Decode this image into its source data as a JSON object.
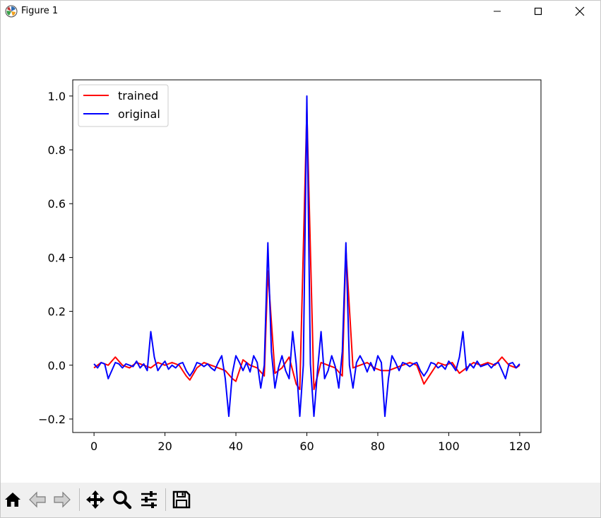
{
  "window": {
    "title": "Figure 1",
    "icons": {
      "app": "matplotlib-logo-icon",
      "minimize": "minimize-icon",
      "maximize": "maximize-icon",
      "close": "close-icon"
    }
  },
  "toolbar": {
    "buttons": [
      {
        "name": "home",
        "icon": "home-icon"
      },
      {
        "name": "back",
        "icon": "back-arrow-icon"
      },
      {
        "name": "forward",
        "icon": "forward-arrow-icon"
      },
      {
        "name": "pan",
        "icon": "move-icon"
      },
      {
        "name": "zoom",
        "icon": "zoom-icon"
      },
      {
        "name": "configure-subplots",
        "icon": "sliders-icon"
      },
      {
        "name": "save",
        "icon": "floppy-disk-icon"
      }
    ]
  },
  "chart_data": {
    "type": "line",
    "title": "",
    "xlabel": "",
    "ylabel": "",
    "xlim": [
      -6,
      126
    ],
    "ylim": [
      -0.25,
      1.06
    ],
    "xticks": [
      0,
      20,
      40,
      60,
      80,
      100,
      120
    ],
    "xtick_labels": [
      "0",
      "20",
      "40",
      "60",
      "80",
      "100",
      "120"
    ],
    "yticks": [
      -0.2,
      0.0,
      0.2,
      0.4,
      0.6,
      0.8,
      1.0
    ],
    "ytick_labels": [
      "−0.2",
      "0.0",
      "0.2",
      "0.4",
      "0.6",
      "0.8",
      "1.0"
    ],
    "grid": false,
    "legend_position": "top-left",
    "series": [
      {
        "name": "trained",
        "color": "#ff0000",
        "x": [
          0,
          2,
          4,
          6,
          8,
          10,
          12,
          14,
          16,
          18,
          20,
          22,
          24,
          26,
          27,
          29,
          31,
          33,
          35,
          37,
          39,
          40,
          42,
          44,
          46,
          48,
          49,
          51,
          53,
          55,
          57,
          58,
          60,
          62,
          64,
          66,
          68,
          70,
          71,
          73,
          75,
          77,
          79,
          81,
          83,
          85,
          87,
          89,
          91,
          93,
          95,
          97,
          99,
          101,
          103,
          105,
          107,
          109,
          111,
          113,
          115,
          117,
          119,
          120
        ],
        "y": [
          -0.01,
          0.01,
          0.0,
          0.03,
          0.0,
          -0.01,
          0.01,
          0.0,
          -0.01,
          0.01,
          0.0,
          0.01,
          0.0,
          -0.04,
          -0.055,
          -0.01,
          0.01,
          0.0,
          -0.01,
          -0.02,
          -0.05,
          -0.06,
          0.02,
          0.0,
          -0.01,
          -0.04,
          0.35,
          -0.03,
          -0.01,
          0.03,
          -0.07,
          -0.09,
          0.95,
          -0.09,
          0.01,
          0.0,
          -0.01,
          -0.04,
          0.43,
          -0.01,
          0.0,
          0.01,
          -0.01,
          -0.02,
          -0.02,
          -0.01,
          0.0,
          0.01,
          0.0,
          -0.07,
          -0.03,
          0.01,
          0.0,
          0.01,
          -0.03,
          -0.01,
          0.01,
          0.0,
          0.01,
          0.0,
          0.03,
          0.0,
          -0.01,
          0.0
        ]
      },
      {
        "name": "original",
        "color": "#0000ff",
        "x": [
          0,
          1,
          2,
          3,
          4,
          5,
          6,
          7,
          8,
          9,
          10,
          11,
          12,
          13,
          14,
          15,
          16,
          17,
          18,
          19,
          20,
          21,
          22,
          23,
          24,
          25,
          26,
          27,
          28,
          29,
          30,
          31,
          32,
          33,
          34,
          35,
          36,
          37,
          38,
          39,
          40,
          41,
          42,
          43,
          44,
          45,
          46,
          47,
          48,
          49,
          50,
          51,
          52,
          53,
          54,
          55,
          56,
          57,
          58,
          59,
          60,
          61,
          62,
          63,
          64,
          65,
          66,
          67,
          68,
          69,
          70,
          71,
          72,
          73,
          74,
          75,
          76,
          77,
          78,
          79,
          80,
          81,
          82,
          83,
          84,
          85,
          86,
          87,
          88,
          89,
          90,
          91,
          92,
          93,
          94,
          95,
          96,
          97,
          98,
          99,
          100,
          101,
          102,
          103,
          104,
          105,
          106,
          107,
          108,
          109,
          110,
          111,
          112,
          113,
          114,
          115,
          116,
          117,
          118,
          119,
          120
        ],
        "y": [
          0.005,
          -0.01,
          0.01,
          0.005,
          -0.05,
          -0.02,
          0.01,
          0.005,
          -0.01,
          0.005,
          0.0,
          -0.005,
          0.015,
          -0.01,
          0.005,
          -0.02,
          0.125,
          0.03,
          -0.02,
          0.0,
          0.015,
          -0.015,
          0.0,
          -0.01,
          0.005,
          0.01,
          -0.02,
          -0.04,
          -0.02,
          0.01,
          0.005,
          -0.005,
          0.005,
          -0.01,
          -0.02,
          0.01,
          0.035,
          -0.05,
          -0.19,
          -0.03,
          0.035,
          0.01,
          -0.02,
          0.01,
          -0.025,
          0.035,
          0.01,
          -0.085,
          0.0,
          0.455,
          0.05,
          -0.085,
          -0.01,
          0.035,
          -0.02,
          -0.05,
          0.125,
          0.005,
          -0.19,
          0.0,
          1.0,
          0.005,
          -0.19,
          -0.02,
          0.125,
          -0.05,
          -0.02,
          0.035,
          -0.005,
          -0.085,
          0.05,
          0.455,
          0.0,
          -0.085,
          0.01,
          0.035,
          0.01,
          -0.025,
          0.01,
          -0.02,
          0.035,
          0.01,
          -0.19,
          -0.05,
          0.035,
          0.01,
          -0.02,
          0.01,
          0.005,
          -0.005,
          0.005,
          0.01,
          -0.02,
          -0.04,
          -0.02,
          0.01,
          0.005,
          -0.01,
          0.0,
          -0.015,
          0.015,
          0.0,
          -0.02,
          0.03,
          0.125,
          -0.02,
          0.005,
          -0.01,
          0.015,
          -0.005,
          0.0,
          0.005,
          -0.01,
          0.005,
          0.01,
          -0.02,
          -0.05,
          0.005,
          0.01,
          -0.01,
          0.005
        ]
      }
    ]
  }
}
